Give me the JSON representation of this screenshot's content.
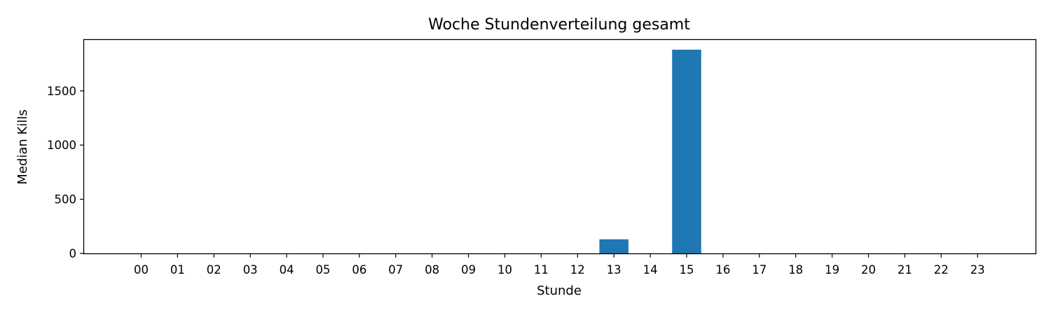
{
  "chart_data": {
    "type": "bar",
    "title": "Woche Stundenverteilung gesamt",
    "xlabel": "Stunde",
    "ylabel": "Median Kills",
    "categories": [
      "00",
      "01",
      "02",
      "03",
      "04",
      "05",
      "06",
      "07",
      "08",
      "09",
      "10",
      "11",
      "12",
      "13",
      "14",
      "15",
      "16",
      "17",
      "18",
      "19",
      "20",
      "21",
      "22",
      "23"
    ],
    "values": [
      0,
      0,
      0,
      0,
      0,
      0,
      0,
      0,
      0,
      0,
      0,
      0,
      0,
      130,
      0,
      1880,
      0,
      0,
      0,
      0,
      0,
      0,
      0,
      0
    ],
    "ylim": [
      0,
      1880
    ],
    "yticks": [
      0,
      500,
      1000,
      1500
    ],
    "grid": false,
    "bar_color": "#1f77b4"
  }
}
